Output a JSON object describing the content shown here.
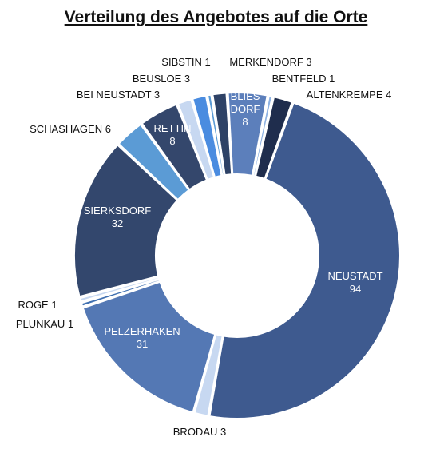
{
  "title": "Verteilung des Angebotes auf die Orte",
  "chart_data": {
    "type": "pie",
    "donut": true,
    "title": "Verteilung des Angebotes auf die Orte",
    "slices": [
      {
        "label": "NEUSTADT",
        "value": 94,
        "color": "#3e5a8f",
        "labelLines": [
          "NEUSTADT",
          "94"
        ],
        "labelPos": "inside"
      },
      {
        "label": "BRODAU",
        "value": 3,
        "color": "#c7d8f1",
        "labelLines": [
          "BRODAU 3"
        ],
        "labelPos": "outside"
      },
      {
        "label": "PELZERHAKEN",
        "value": 31,
        "color": "#5478b4",
        "labelLines": [
          "PELZERHAKEN",
          "31"
        ],
        "labelPos": "inside"
      },
      {
        "label": "PLUNKAU",
        "value": 1,
        "color": "#3f6fb0",
        "labelLines": [
          "PLUNKAU 1"
        ],
        "labelPos": "outside"
      },
      {
        "label": "ROGE",
        "value": 1,
        "color": "#c7d8f1",
        "labelLines": [
          "ROGE 1"
        ],
        "labelPos": "outside"
      },
      {
        "label": "SIERKSDORF",
        "value": 32,
        "color": "#33476d",
        "labelLines": [
          "SIERKSDORF",
          "32"
        ],
        "labelPos": "inside"
      },
      {
        "label": "SCHASHAGEN",
        "value": 6,
        "color": "#5b9bd5",
        "labelLines": [
          "SCHASHAGEN 6"
        ],
        "labelPos": "outside"
      },
      {
        "label": "RETTIN",
        "value": 8,
        "color": "#34476c",
        "labelLines": [
          "RETTIN",
          "8"
        ],
        "labelPos": "inside"
      },
      {
        "label": "BEI NEUSTADT",
        "value": 3,
        "color": "#c7d8f1",
        "labelLines": [
          "BEI NEUSTADT 3"
        ],
        "labelPos": "outside"
      },
      {
        "label": "BEUSLOE",
        "value": 3,
        "color": "#4a8ce0",
        "labelLines": [
          "BEUSLOE 3"
        ],
        "labelPos": "outside"
      },
      {
        "label": "SIBSTIN",
        "value": 1,
        "color": "#5b9bd5",
        "labelLines": [
          "SIBSTIN 1"
        ],
        "labelPos": "outside"
      },
      {
        "label": "MERKENDORF",
        "value": 3,
        "color": "#2e4266",
        "labelLines": [
          "MERKENDORF 3"
        ],
        "labelPos": "outside"
      },
      {
        "label": "BLIESDORF",
        "value": 8,
        "color": "#5c7fbb",
        "labelLines": [
          "BLIES",
          "DORF",
          "8"
        ],
        "labelPos": "inside"
      },
      {
        "label": "BENTFELD",
        "value": 1,
        "color": "#8fb3e3",
        "labelLines": [
          "BENTFELD 1"
        ],
        "labelPos": "outside"
      },
      {
        "label": "ALTENKREMPE",
        "value": 4,
        "color": "#1f2d4d",
        "labelLines": [
          "ALTENKREMPE 4"
        ],
        "labelPos": "outside"
      }
    ]
  }
}
